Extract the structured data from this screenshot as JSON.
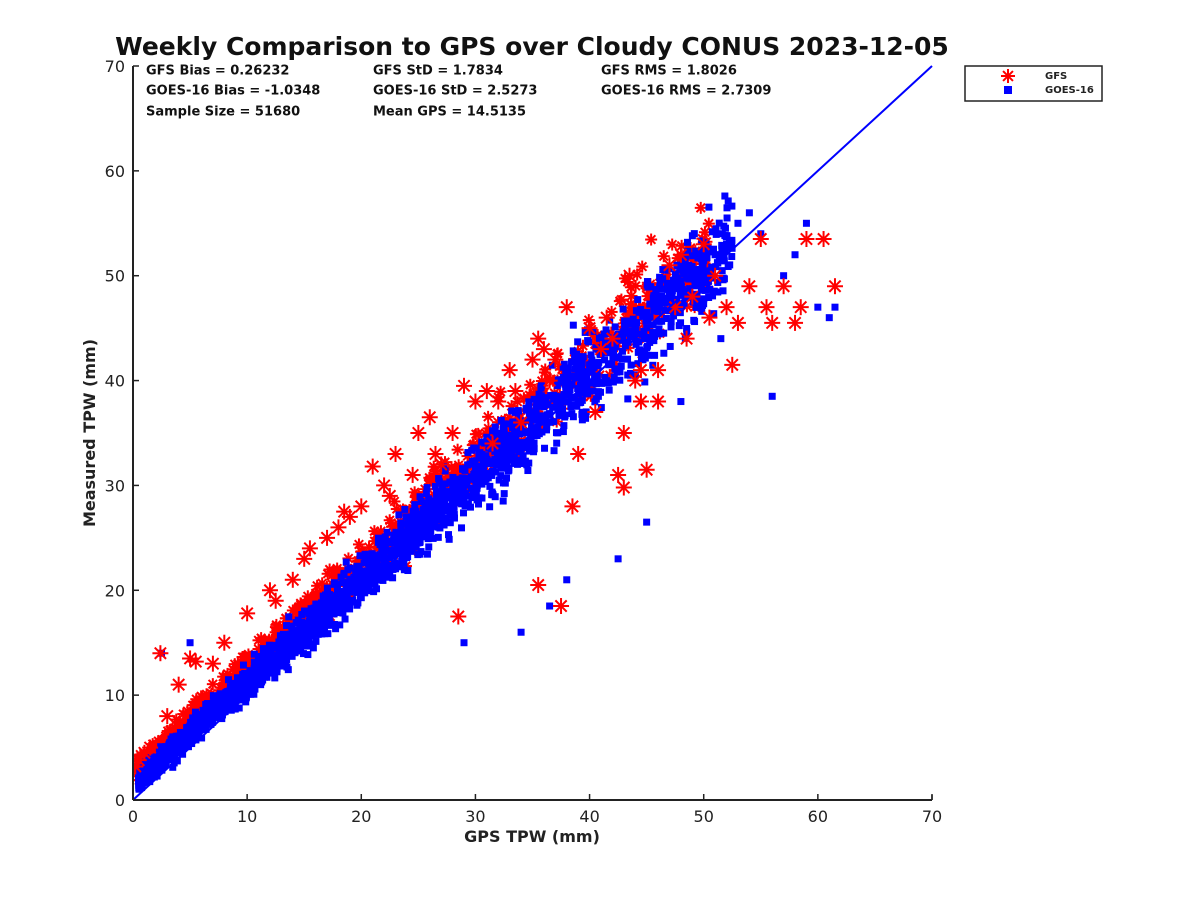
{
  "chart_data": {
    "type": "scatter",
    "title": "Weekly Comparison to GPS over Cloudy CONUS 2023-12-05",
    "xlabel": "GPS TPW (mm)",
    "ylabel": "Measured TPW (mm)",
    "xlim": [
      0,
      70
    ],
    "ylim": [
      0,
      70
    ],
    "xticks": [
      0,
      10,
      20,
      30,
      40,
      50,
      60,
      70
    ],
    "yticks": [
      0,
      10,
      20,
      30,
      40,
      50,
      60,
      70
    ],
    "grid": false,
    "legend_position": "outside-top-right",
    "stats": [
      [
        "GFS Bias = 0.26232",
        "GFS StD = 1.7834",
        "GFS RMS = 1.8026"
      ],
      [
        "GOES-16 Bias = -1.0348",
        "GOES-16 StD = 2.5273",
        "GOES-16 RMS = 2.7309"
      ],
      [
        "Sample Size = 51680",
        "Mean GPS = 14.5135",
        ""
      ]
    ],
    "reference_line": {
      "x": [
        0,
        70
      ],
      "y": [
        0,
        70
      ],
      "color": "#0000ff"
    },
    "series": [
      {
        "name": "GFS",
        "marker": "asterisk",
        "color": "#ff0000",
        "points": [
          [
            0.2,
            3.2
          ],
          [
            0.5,
            3.8
          ],
          [
            1,
            4.5
          ],
          [
            1.5,
            5
          ],
          [
            2.4,
            14
          ],
          [
            3,
            8
          ],
          [
            4,
            11
          ],
          [
            5,
            13.5
          ],
          [
            5.5,
            13.2
          ],
          [
            7,
            13
          ],
          [
            8,
            15
          ],
          [
            10,
            17.8
          ],
          [
            12,
            20
          ],
          [
            14,
            21
          ],
          [
            15,
            23
          ],
          [
            17,
            25
          ],
          [
            18,
            26
          ],
          [
            19,
            27
          ],
          [
            20,
            28
          ],
          [
            21,
            31.8
          ],
          [
            22,
            30
          ],
          [
            23,
            33
          ],
          [
            25,
            35
          ],
          [
            26,
            36.5
          ],
          [
            27,
            32
          ],
          [
            28,
            35
          ],
          [
            29,
            39.5
          ],
          [
            30,
            38
          ],
          [
            31,
            39
          ],
          [
            32,
            38
          ],
          [
            33,
            41
          ],
          [
            34,
            36
          ],
          [
            35,
            42
          ],
          [
            35.5,
            44
          ],
          [
            36,
            43
          ],
          [
            37,
            42
          ],
          [
            37.5,
            18.5
          ],
          [
            38,
            47
          ],
          [
            38.5,
            28
          ],
          [
            39,
            33
          ],
          [
            40,
            45
          ],
          [
            41,
            43
          ],
          [
            42,
            44
          ],
          [
            42.5,
            31
          ],
          [
            43,
            35
          ],
          [
            43.5,
            50
          ],
          [
            44,
            40
          ],
          [
            44.5,
            41
          ],
          [
            45,
            31.5
          ],
          [
            46,
            38
          ],
          [
            47,
            51
          ],
          [
            47.5,
            47
          ],
          [
            48,
            52
          ],
          [
            49,
            48
          ],
          [
            50,
            53
          ],
          [
            51,
            50
          ],
          [
            52,
            47
          ],
          [
            53,
            45.5
          ],
          [
            54,
            49
          ],
          [
            55,
            53.5
          ],
          [
            56,
            45.5
          ],
          [
            57,
            49
          ],
          [
            58,
            45.5
          ],
          [
            58.5,
            47
          ],
          [
            59,
            53.5
          ],
          [
            60.5,
            53.5
          ],
          [
            61.5,
            49
          ],
          [
            12.5,
            19
          ],
          [
            15.5,
            24
          ],
          [
            18.5,
            27.5
          ],
          [
            22.5,
            29
          ],
          [
            24.5,
            31
          ],
          [
            26.5,
            33
          ],
          [
            28.5,
            17.5
          ],
          [
            31.5,
            34
          ],
          [
            33.5,
            39
          ],
          [
            35.5,
            20.5
          ],
          [
            36.5,
            40
          ],
          [
            40.5,
            37
          ],
          [
            41.5,
            46
          ],
          [
            43,
            29.8
          ],
          [
            44.5,
            38
          ],
          [
            46,
            41
          ],
          [
            48.5,
            44
          ],
          [
            50.5,
            46
          ],
          [
            52.5,
            41.5
          ],
          [
            55.5,
            47
          ]
        ]
      },
      {
        "name": "GOES-16",
        "marker": "square",
        "color": "#0000ff",
        "points": [
          [
            0.5,
            2.5
          ],
          [
            1,
            3
          ],
          [
            2,
            3.5
          ],
          [
            2.5,
            14
          ],
          [
            3,
            5
          ],
          [
            4,
            5.5
          ],
          [
            5,
            6.5
          ],
          [
            5,
            15
          ],
          [
            6,
            7.5
          ],
          [
            7,
            8.5
          ],
          [
            8,
            9.5
          ],
          [
            9,
            10.5
          ],
          [
            10,
            11.5
          ],
          [
            11,
            12.5
          ],
          [
            12,
            13.5
          ],
          [
            13,
            14.5
          ],
          [
            14,
            15.5
          ],
          [
            15,
            16.5
          ],
          [
            16,
            17.5
          ],
          [
            17,
            18.5
          ],
          [
            18,
            19.5
          ],
          [
            19,
            20.5
          ],
          [
            20,
            21.5
          ],
          [
            21,
            22.5
          ],
          [
            22,
            23.5
          ],
          [
            23,
            24.5
          ],
          [
            24,
            25.5
          ],
          [
            25,
            26.5
          ],
          [
            26,
            27.5
          ],
          [
            27,
            28.5
          ],
          [
            28,
            29.5
          ],
          [
            29,
            30.5
          ],
          [
            30,
            31.5
          ],
          [
            31,
            32.5
          ],
          [
            32,
            33.5
          ],
          [
            33,
            34.5
          ],
          [
            34,
            35.5
          ],
          [
            35,
            36.5
          ],
          [
            36,
            37.5
          ],
          [
            37,
            38.5
          ],
          [
            38,
            39.5
          ],
          [
            39,
            40.5
          ],
          [
            40,
            41.5
          ],
          [
            41,
            42.5
          ],
          [
            42,
            43.5
          ],
          [
            43,
            44.5
          ],
          [
            44,
            45.5
          ],
          [
            45,
            46.5
          ],
          [
            46,
            47.5
          ],
          [
            47,
            48.5
          ],
          [
            48,
            49.5
          ],
          [
            49,
            50.5
          ],
          [
            50,
            51.5
          ],
          [
            51,
            52
          ],
          [
            52,
            53
          ],
          [
            53,
            55
          ],
          [
            54,
            56
          ],
          [
            55,
            54
          ],
          [
            56,
            38.5
          ],
          [
            57,
            50
          ],
          [
            58,
            52
          ],
          [
            59,
            55
          ],
          [
            60,
            47
          ],
          [
            61,
            46
          ],
          [
            61.5,
            47
          ],
          [
            29,
            15
          ],
          [
            34,
            16
          ],
          [
            38,
            21
          ],
          [
            42.5,
            23
          ],
          [
            45,
            26.5
          ],
          [
            48,
            38
          ],
          [
            51.5,
            44
          ],
          [
            36.5,
            18.5
          ]
        ]
      }
    ]
  }
}
